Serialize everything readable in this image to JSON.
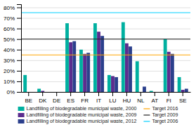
{
  "chart_data": {
    "type": "bar",
    "categories": [
      "BE",
      "DK",
      "DE",
      "ES",
      "FR",
      "IT",
      "LU",
      "HU",
      "NL",
      "AT",
      "FI",
      "SE"
    ],
    "series": [
      {
        "name": "Landfilling of biodegradable municipal waste, 2000",
        "color": "#00b0a0",
        "values": [
          16,
          3,
          0,
          65,
          40,
          65,
          16,
          66,
          29,
          1,
          50,
          14
        ]
      },
      {
        "name": "Landfilling of biodegradable municipal waste, 2009",
        "color": "#5b2d8e",
        "values": [
          0,
          1,
          0,
          47,
          36,
          57,
          15,
          46,
          0,
          0,
          38,
          2
        ]
      },
      {
        "name": "Landfilling of biodegradable municipal waste, 2012",
        "color": "#2b3f8c",
        "values": [
          0,
          0,
          0,
          48,
          37,
          53,
          14,
          43,
          5,
          0,
          36,
          3
        ]
      }
    ],
    "reference_lines": [
      {
        "name": "Target 2016",
        "value": 35,
        "color": "#ffa500"
      },
      {
        "name": "Target 2009",
        "value": 50,
        "color": "#222222"
      },
      {
        "name": "Target 2006",
        "value": 75,
        "color": "#00cfff"
      }
    ],
    "ylim": [
      0,
      83
    ],
    "yticks": [
      {
        "value": 0,
        "label": "0%"
      },
      {
        "value": 10,
        "label": "10%"
      },
      {
        "value": 20,
        "label": "20%"
      },
      {
        "value": 30,
        "label": "30%"
      },
      {
        "value": 40,
        "label": "40%"
      },
      {
        "value": 50,
        "label": "50%"
      },
      {
        "value": 60,
        "label": "60%"
      },
      {
        "value": 70,
        "label": "70%"
      },
      {
        "value": 80,
        "label": "80%"
      }
    ],
    "grid": true,
    "legend": "bottom"
  }
}
